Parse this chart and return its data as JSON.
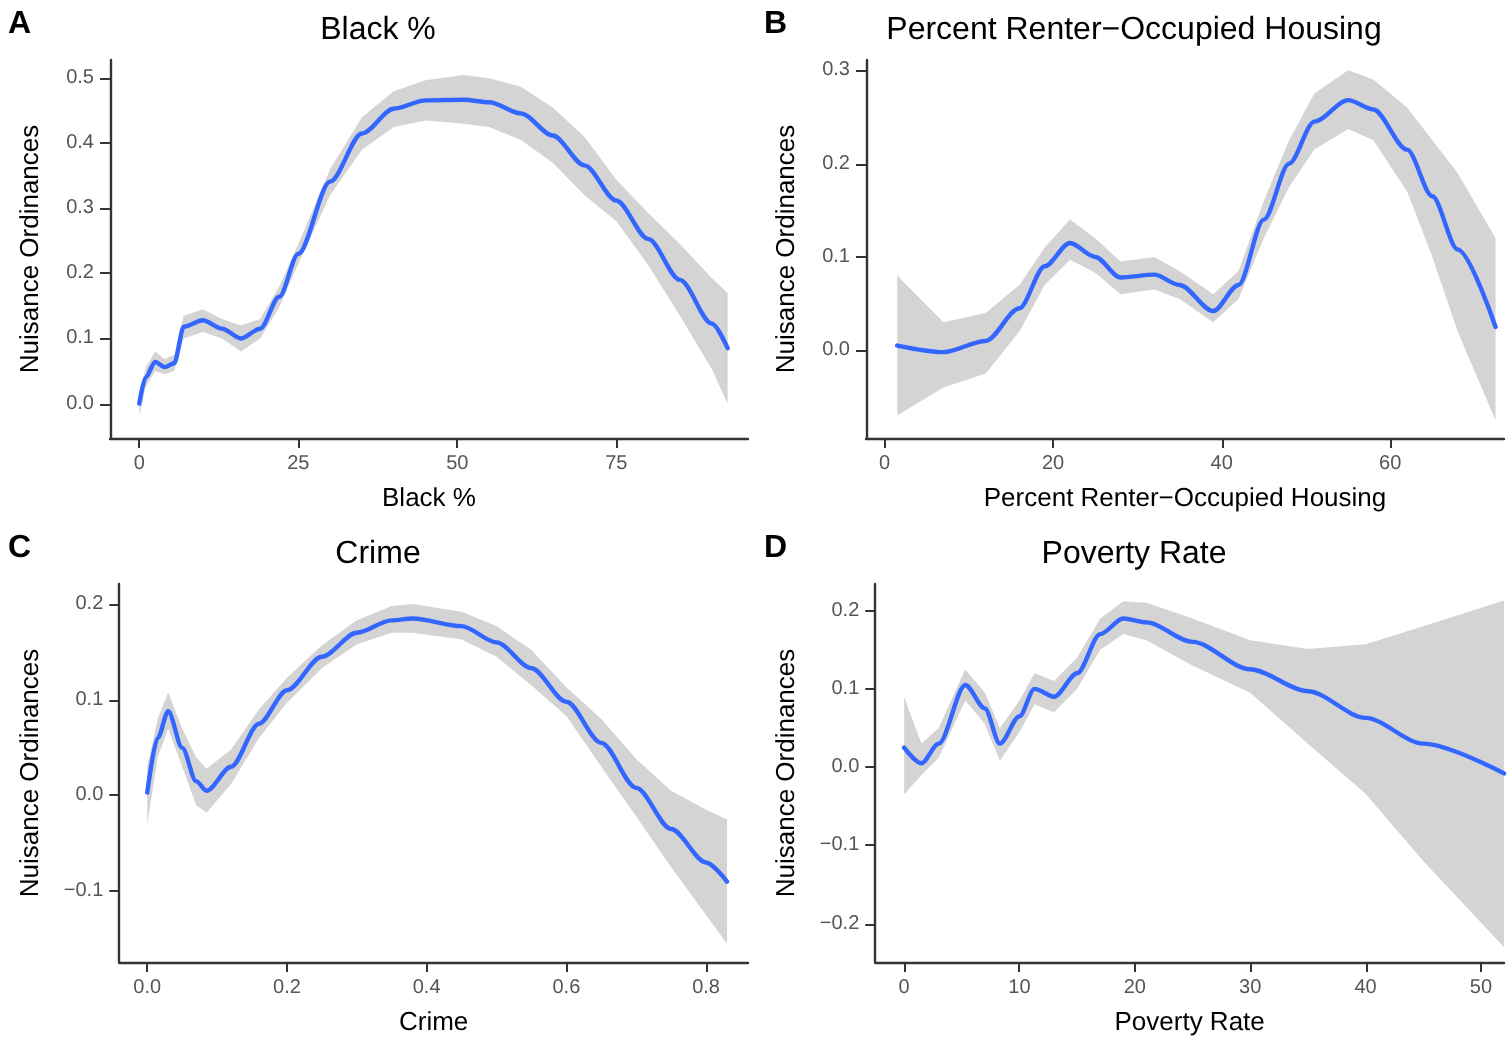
{
  "chart_data": [
    {
      "type": "line",
      "title": "Black %",
      "annotations": [
        "A"
      ],
      "xlabel": "Black %",
      "ylabel": "Nuisance Ordinances",
      "xlim": [
        -4.6,
        95.7
      ],
      "ylim": [
        -0.053,
        0.528
      ],
      "xticks": [
        0,
        25,
        50,
        75
      ],
      "yticks": [
        {
          "value": 0,
          "label": "0.0"
        },
        {
          "value": 0.1,
          "label": "0.1"
        },
        {
          "value": 0.2,
          "label": "0.2"
        },
        {
          "value": 0.3,
          "label": "0.3"
        },
        {
          "value": 0.4,
          "label": "0.4"
        },
        {
          "value": 0.5,
          "label": "0.5"
        }
      ],
      "series": [
        {
          "color": "#3366ff",
          "x": [
            0,
            1,
            2.5,
            4,
            5.5,
            7,
            10,
            13,
            16,
            19,
            22,
            25,
            30,
            35,
            40,
            45,
            51,
            55,
            60,
            65,
            70,
            75,
            80,
            85,
            90,
            92.5
          ],
          "values": [
            0,
            0.04,
            0.064,
            0.056,
            0.062,
            0.118,
            0.128,
            0.115,
            0.1,
            0.115,
            0.164,
            0.23,
            0.341,
            0.415,
            0.453,
            0.466,
            0.467,
            0.463,
            0.446,
            0.412,
            0.366,
            0.312,
            0.253,
            0.19,
            0.123,
            0.085
          ],
          "lower": [
            -0.02,
            0.025,
            0.05,
            0.045,
            0.05,
            0.1,
            0.11,
            0.1,
            0.08,
            0.1,
            0.148,
            0.215,
            0.32,
            0.39,
            0.425,
            0.435,
            0.43,
            0.425,
            0.405,
            0.37,
            0.32,
            0.28,
            0.213,
            0.135,
            0.053,
            0.0
          ],
          "upper": [
            0.01,
            0.055,
            0.08,
            0.068,
            0.075,
            0.135,
            0.145,
            0.13,
            0.12,
            0.13,
            0.18,
            0.245,
            0.36,
            0.44,
            0.48,
            0.497,
            0.505,
            0.5,
            0.487,
            0.455,
            0.41,
            0.344,
            0.293,
            0.245,
            0.193,
            0.17
          ]
        }
      ]
    },
    {
      "type": "line",
      "title": "Percent Renter−Occupied Housing",
      "annotations": [
        "B"
      ],
      "xlabel": "Percent Renter−Occupied Housing",
      "ylabel": "Nuisance Ordinances",
      "xlim": [
        -2.2,
        73.5
      ],
      "ylim": [
        -0.094,
        0.311
      ],
      "xticks": [
        0,
        20,
        40,
        60
      ],
      "yticks": [
        {
          "value": 0,
          "label": "0.0"
        },
        {
          "value": 0.1,
          "label": "0.1"
        },
        {
          "value": 0.2,
          "label": "0.2"
        },
        {
          "value": 0.3,
          "label": "0.3"
        }
      ],
      "series": [
        {
          "color": "#3366ff",
          "x": [
            1.5,
            7,
            12,
            16,
            19,
            22,
            25,
            28,
            32,
            35,
            39,
            42,
            45,
            48,
            51,
            55,
            58,
            62,
            65,
            68,
            72.5
          ],
          "values": [
            0.005,
            -0.002,
            0.01,
            0.045,
            0.09,
            0.115,
            0.1,
            0.078,
            0.081,
            0.07,
            0.042,
            0.07,
            0.14,
            0.2,
            0.245,
            0.268,
            0.258,
            0.215,
            0.165,
            0.108,
            0.025
          ],
          "lower": [
            -0.07,
            -0.04,
            -0.025,
            0.02,
            0.07,
            0.097,
            0.083,
            0.06,
            0.065,
            0.055,
            0.03,
            0.055,
            0.12,
            0.175,
            0.215,
            0.237,
            0.225,
            0.17,
            0.1,
            0.02,
            -0.075
          ],
          "upper": [
            0.08,
            0.03,
            0.04,
            0.07,
            0.11,
            0.14,
            0.12,
            0.095,
            0.1,
            0.085,
            0.06,
            0.085,
            0.16,
            0.225,
            0.275,
            0.3,
            0.29,
            0.26,
            0.225,
            0.19,
            0.12
          ]
        }
      ]
    },
    {
      "type": "line",
      "title": "Crime",
      "annotations": [
        "C"
      ],
      "xlabel": "Crime",
      "ylabel": "Nuisance Ordinances",
      "xlim": [
        -0.04,
        0.86
      ],
      "ylim": [
        -0.174,
        0.221
      ],
      "xticks": [
        {
          "value": 0,
          "label": "0.0"
        },
        {
          "value": 0.2,
          "label": "0.2"
        },
        {
          "value": 0.4,
          "label": "0.4"
        },
        {
          "value": 0.6,
          "label": "0.6"
        },
        {
          "value": 0.8,
          "label": "0.8"
        }
      ],
      "yticks": [
        {
          "value": -0.1,
          "label": "−0.1"
        },
        {
          "value": 0,
          "label": "0.0"
        },
        {
          "value": 0.1,
          "label": "0.1"
        },
        {
          "value": 0.2,
          "label": "0.2"
        }
      ],
      "series": [
        {
          "color": "#3366ff",
          "x": [
            0,
            0.015,
            0.03,
            0.05,
            0.07,
            0.085,
            0.12,
            0.16,
            0.2,
            0.25,
            0.3,
            0.35,
            0.38,
            0.45,
            0.5,
            0.55,
            0.6,
            0.65,
            0.7,
            0.75,
            0.8,
            0.83
          ],
          "values": [
            0.003,
            0.06,
            0.088,
            0.05,
            0.015,
            0.005,
            0.03,
            0.075,
            0.11,
            0.145,
            0.17,
            0.183,
            0.185,
            0.177,
            0.16,
            0.133,
            0.098,
            0.055,
            0.008,
            -0.035,
            -0.07,
            -0.09
          ],
          "lower": [
            -0.03,
            0.04,
            0.07,
            0.03,
            -0.01,
            -0.018,
            0.012,
            0.06,
            0.097,
            0.133,
            0.158,
            0.17,
            0.17,
            0.163,
            0.145,
            0.115,
            0.083,
            0.03,
            -0.022,
            -0.075,
            -0.125,
            -0.155
          ],
          "upper": [
            0.03,
            0.08,
            0.108,
            0.07,
            0.04,
            0.028,
            0.048,
            0.09,
            0.123,
            0.157,
            0.183,
            0.198,
            0.2,
            0.192,
            0.177,
            0.152,
            0.113,
            0.08,
            0.038,
            0.005,
            -0.015,
            -0.025
          ]
        }
      ]
    },
    {
      "type": "line",
      "title": "Poverty Rate",
      "annotations": [
        "D"
      ],
      "xlabel": "Poverty Rate",
      "ylabel": "Nuisance Ordinances",
      "xlim": [
        -2.5,
        52
      ],
      "ylim": [
        -0.249,
        0.234
      ],
      "xticks": [
        0,
        10,
        20,
        30,
        40,
        50
      ],
      "yticks": [
        {
          "value": -0.2,
          "label": "−0.2"
        },
        {
          "value": -0.1,
          "label": "−0.1"
        },
        {
          "value": 0,
          "label": "0.0"
        },
        {
          "value": 0.1,
          "label": "0.1"
        },
        {
          "value": 0.2,
          "label": "0.2"
        }
      ],
      "series": [
        {
          "color": "#3366ff",
          "x": [
            0,
            1.5,
            3,
            5.3,
            7,
            8.3,
            10,
            11.3,
            13,
            15,
            17,
            19,
            21,
            25,
            30,
            35,
            40,
            45,
            52
          ],
          "values": [
            0.025,
            0.005,
            0.03,
            0.105,
            0.075,
            0.03,
            0.065,
            0.1,
            0.09,
            0.12,
            0.17,
            0.19,
            0.185,
            0.16,
            0.125,
            0.097,
            0.063,
            0.03,
            -0.008
          ],
          "lower": [
            -0.035,
            -0.01,
            0.012,
            0.085,
            0.055,
            0.008,
            0.045,
            0.08,
            0.07,
            0.1,
            0.15,
            0.17,
            0.162,
            0.13,
            0.095,
            0.03,
            -0.034,
            -0.12,
            -0.23
          ],
          "upper": [
            0.09,
            0.03,
            0.05,
            0.125,
            0.095,
            0.05,
            0.085,
            0.12,
            0.11,
            0.14,
            0.19,
            0.212,
            0.21,
            0.19,
            0.162,
            0.151,
            0.157,
            0.18,
            0.213
          ]
        }
      ]
    }
  ]
}
